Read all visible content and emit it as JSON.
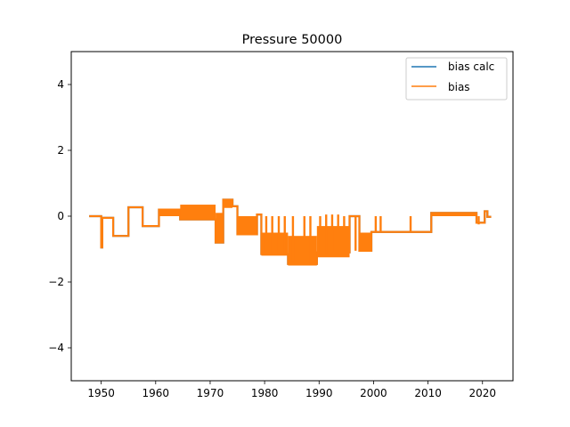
{
  "chart_data": {
    "type": "line",
    "title": "Pressure 50000",
    "xlabel": "",
    "ylabel": "",
    "xlim": [
      1944.5,
      2025.6
    ],
    "ylim": [
      -5,
      5
    ],
    "x_ticks": [
      1950,
      1960,
      1970,
      1980,
      1990,
      2000,
      2010,
      2020
    ],
    "y_ticks": [
      -4,
      -2,
      0,
      2,
      4
    ],
    "grid": false,
    "legend": "top-right",
    "series": [
      {
        "name": "bias calc",
        "color": "#1f77b4",
        "points": [
          [
            1947.8,
            0.0
          ],
          [
            1950.0,
            0.0
          ],
          [
            1950.0,
            -0.95
          ],
          [
            1950.2,
            -0.95
          ],
          [
            1950.2,
            -0.05
          ],
          [
            1952.2,
            -0.05
          ],
          [
            1952.2,
            -0.6
          ],
          [
            1955.0,
            -0.6
          ],
          [
            1955.0,
            0.27
          ],
          [
            1957.6,
            0.27
          ],
          [
            1957.6,
            -0.3
          ],
          [
            1960.6,
            -0.3
          ],
          [
            1960.6,
            0.2
          ],
          [
            1964.5,
            0.2
          ],
          [
            1964.5,
            -0.1
          ],
          [
            1971.0,
            -0.1
          ],
          [
            1971.0,
            -0.8
          ],
          [
            1972.4,
            -0.8
          ],
          [
            1972.4,
            0.5
          ],
          [
            1974.1,
            0.5
          ],
          [
            1974.1,
            0.3
          ],
          [
            1975.0,
            0.3
          ],
          [
            1975.0,
            -0.55
          ],
          [
            1978.6,
            -0.55
          ],
          [
            1978.6,
            0.05
          ],
          [
            1979.4,
            0.05
          ],
          [
            1979.4,
            -1.15
          ],
          [
            1984.3,
            -1.15
          ],
          [
            1984.3,
            -1.45
          ],
          [
            1989.6,
            -1.45
          ],
          [
            1989.6,
            -1.1
          ],
          [
            1995.6,
            -1.1
          ],
          [
            1995.6,
            0.0
          ],
          [
            1997.4,
            0.0
          ],
          [
            1997.4,
            -1.05
          ],
          [
            1999.6,
            -1.05
          ],
          [
            1999.6,
            -0.48
          ],
          [
            2010.6,
            -0.48
          ],
          [
            2010.6,
            0.1
          ],
          [
            2018.9,
            0.1
          ],
          [
            2018.9,
            -0.2
          ],
          [
            2020.4,
            -0.2
          ],
          [
            2020.4,
            0.15
          ],
          [
            2020.9,
            0.15
          ],
          [
            2020.9,
            -0.02
          ],
          [
            2021.6,
            -0.02
          ]
        ]
      },
      {
        "name": "bias",
        "color": "#ff7f0e",
        "points": [
          [
            1947.8,
            0.0
          ],
          [
            1950.0,
            0.0
          ],
          [
            1950.0,
            -0.95
          ],
          [
            1950.2,
            -0.95
          ],
          [
            1950.2,
            -0.05
          ],
          [
            1952.2,
            -0.05
          ],
          [
            1952.2,
            -0.6
          ],
          [
            1955.0,
            -0.6
          ],
          [
            1955.0,
            0.27
          ],
          [
            1957.6,
            0.27
          ],
          [
            1957.6,
            -0.3
          ],
          [
            1960.6,
            -0.3
          ],
          [
            1960.6,
            0.2
          ],
          [
            1964.5,
            0.2
          ],
          [
            1964.5,
            -0.1
          ],
          [
            1971.0,
            -0.1
          ],
          [
            1971.0,
            -0.8
          ],
          [
            1972.4,
            -0.8
          ],
          [
            1972.4,
            0.5
          ],
          [
            1974.1,
            0.5
          ],
          [
            1974.1,
            0.3
          ],
          [
            1975.0,
            0.3
          ],
          [
            1975.0,
            -0.55
          ],
          [
            1978.6,
            -0.55
          ],
          [
            1978.6,
            0.05
          ],
          [
            1979.4,
            0.05
          ],
          [
            1979.4,
            -1.15
          ],
          [
            1984.3,
            -1.15
          ],
          [
            1984.3,
            -1.45
          ],
          [
            1989.6,
            -1.45
          ],
          [
            1989.6,
            -1.1
          ],
          [
            1995.6,
            -1.1
          ],
          [
            1995.6,
            0.0
          ],
          [
            1997.4,
            0.0
          ],
          [
            1997.4,
            -1.05
          ],
          [
            1999.6,
            -1.05
          ],
          [
            1999.6,
            -0.48
          ],
          [
            2010.6,
            -0.48
          ],
          [
            2010.6,
            0.1
          ],
          [
            2018.9,
            0.1
          ],
          [
            2018.9,
            -0.2
          ],
          [
            2020.4,
            -0.2
          ],
          [
            2020.4,
            0.15
          ],
          [
            2020.9,
            0.15
          ],
          [
            2020.9,
            -0.02
          ],
          [
            2021.6,
            -0.02
          ]
        ]
      }
    ],
    "bands": [
      {
        "x": [
          1960.6,
          1964.5
        ],
        "y": [
          0.0,
          0.22
        ]
      },
      {
        "x": [
          1964.5,
          1971.0
        ],
        "y": [
          -0.12,
          0.35
        ]
      },
      {
        "x": [
          1971.0,
          1972.4
        ],
        "y": [
          -0.8,
          0.1
        ]
      },
      {
        "x": [
          1972.4,
          1974.1
        ],
        "y": [
          0.25,
          0.5
        ]
      },
      {
        "x": [
          1975.0,
          1978.6
        ],
        "y": [
          -0.55,
          0.0
        ]
      },
      {
        "x": [
          1979.4,
          1984.3
        ],
        "y": [
          -1.2,
          -0.5
        ]
      },
      {
        "x": [
          1984.3,
          1989.6
        ],
        "y": [
          -1.5,
          -0.6
        ]
      },
      {
        "x": [
          1989.6,
          1995.6
        ],
        "y": [
          -1.25,
          -0.3
        ]
      },
      {
        "x": [
          1997.4,
          1999.6
        ],
        "y": [
          -1.05,
          -0.5
        ]
      },
      {
        "x": [
          2010.6,
          2018.9
        ],
        "y": [
          0.0,
          0.12
        ]
      }
    ],
    "spikes": [
      {
        "x": 1980.3,
        "y": [
          -1.15,
          0.0
        ]
      },
      {
        "x": 1981.4,
        "y": [
          -1.15,
          0.0
        ]
      },
      {
        "x": 1982.6,
        "y": [
          -1.15,
          0.0
        ]
      },
      {
        "x": 1983.7,
        "y": [
          -1.15,
          0.0
        ]
      },
      {
        "x": 1985.2,
        "y": [
          -1.4,
          0.0
        ]
      },
      {
        "x": 1987.3,
        "y": [
          -1.5,
          0.0
        ]
      },
      {
        "x": 1988.4,
        "y": [
          -1.5,
          0.0
        ]
      },
      {
        "x": 1990.2,
        "y": [
          -1.2,
          0.0
        ]
      },
      {
        "x": 1991.3,
        "y": [
          -1.15,
          0.05
        ]
      },
      {
        "x": 1992.4,
        "y": [
          -1.1,
          0.05
        ]
      },
      {
        "x": 1993.5,
        "y": [
          -1.05,
          0.05
        ]
      },
      {
        "x": 1994.6,
        "y": [
          -1.05,
          0.0
        ]
      },
      {
        "x": 1996.7,
        "y": [
          -1.05,
          0.0
        ]
      },
      {
        "x": 2000.4,
        "y": [
          -0.5,
          0.0
        ]
      },
      {
        "x": 2001.3,
        "y": [
          -0.5,
          0.0
        ]
      },
      {
        "x": 2006.8,
        "y": [
          -0.5,
          0.0
        ]
      },
      {
        "x": 2019.3,
        "y": [
          -0.25,
          0.0
        ]
      }
    ]
  }
}
